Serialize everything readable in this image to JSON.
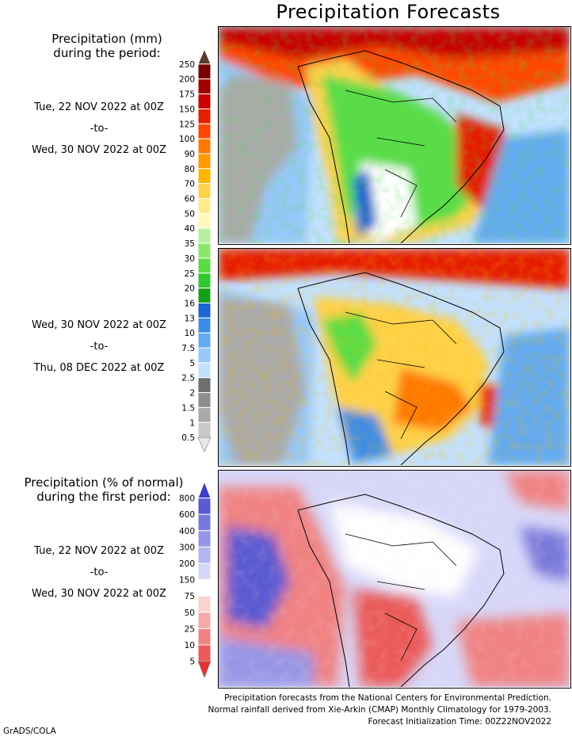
{
  "title": "Precipitation Forecasts",
  "section1": {
    "header": [
      "Precipitation (mm)",
      "during the period:"
    ],
    "period1": {
      "start": "Tue, 22 NOV 2022 at 00Z",
      "sep": "-to-",
      "end": "Wed, 30 NOV 2022 at 00Z"
    },
    "period2": {
      "start": "Wed, 30 NOV 2022 at 00Z",
      "sep": "-to-",
      "end": "Thu, 08 DEC 2022 at 00Z"
    }
  },
  "section2": {
    "header": [
      "Precipitation (% of normal)",
      "during the first period:"
    ],
    "period": {
      "start": "Tue, 22 NOV 2022 at 00Z",
      "sep": "-to-",
      "end": "Wed, 30 NOV 2022 at 00Z"
    }
  },
  "colorbar_mm": {
    "levels": [
      "250",
      "200",
      "175",
      "150",
      "125",
      "100",
      "90",
      "80",
      "70",
      "60",
      "50",
      "40",
      "35",
      "30",
      "25",
      "20",
      "16",
      "13",
      "10",
      "7.5",
      "5",
      "2.5",
      "2",
      "1.5",
      "1",
      "0.5"
    ],
    "colors": [
      "#5a3a2a",
      "#780000",
      "#a00000",
      "#c80000",
      "#e61e00",
      "#ff4600",
      "#ff7800",
      "#ff9a00",
      "#ffb400",
      "#ffd24b",
      "#ffeb8c",
      "#fffab9",
      "#b4f0a0",
      "#8ce66e",
      "#5adc46",
      "#32c832",
      "#14a014",
      "#1e64d2",
      "#3c8ce6",
      "#64aaf0",
      "#96c8fa",
      "#c3e1ff",
      "#6e6e6e",
      "#8c8c8c",
      "#aaaaaa",
      "#c8c8c8",
      "#e6e6e6"
    ]
  },
  "colorbar_pct": {
    "levels": [
      "800",
      "600",
      "400",
      "300",
      "200",
      "150",
      "75",
      "50",
      "25",
      "10",
      "5"
    ],
    "colors": [
      "#3c3cc8",
      "#5a5ad2",
      "#7878dc",
      "#9696e6",
      "#b4b4f0",
      "#d7d7fa",
      "#ffffff",
      "#fad2d2",
      "#f5aaaa",
      "#f08282",
      "#eb5a5a",
      "#e63232"
    ]
  },
  "footer": [
    "Precipitation forecasts from the National Centers for Environmental Prediction.",
    "Normal rainfall derived from Xie-Arkin (CMAP) Monthly Climatology for 1979-2003.",
    "Forecast Initialization Time: 00Z22NOV2022"
  ],
  "credit": "GrADS/COLA"
}
